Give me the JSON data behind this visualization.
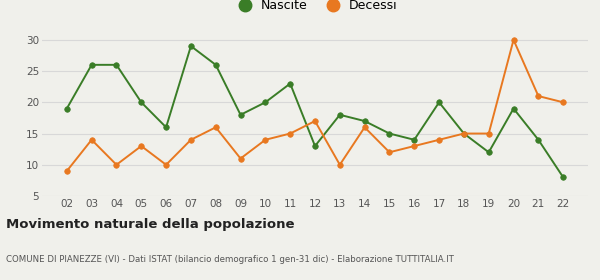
{
  "x_labels": [
    "02",
    "03",
    "04",
    "05",
    "06",
    "07",
    "08",
    "09",
    "10",
    "11",
    "12",
    "13",
    "14",
    "15",
    "16",
    "17",
    "18",
    "19",
    "20",
    "21",
    "22"
  ],
  "nascite": [
    19,
    26,
    26,
    20,
    16,
    29,
    26,
    18,
    20,
    23,
    13,
    18,
    17,
    15,
    14,
    20,
    15,
    12,
    19,
    14,
    8
  ],
  "decessi": [
    9,
    14,
    10,
    13,
    10,
    14,
    16,
    11,
    14,
    15,
    17,
    10,
    16,
    12,
    13,
    14,
    15,
    15,
    30,
    21,
    20
  ],
  "nascite_color": "#3a7d27",
  "decessi_color": "#e87820",
  "marker_size": 4,
  "line_width": 1.4,
  "ylim": [
    5,
    31
  ],
  "yticks": [
    5,
    10,
    15,
    20,
    25,
    30
  ],
  "title": "Movimento naturale della popolazione",
  "subtitle": "COMUNE DI PIANEZZE (VI) - Dati ISTAT (bilancio demografico 1 gen-31 dic) - Elaborazione TUTTITALIA.IT",
  "legend_nascite": "Nascite",
  "legend_decessi": "Decessi",
  "background_color": "#f0f0eb",
  "grid_color": "#d8d8d8"
}
